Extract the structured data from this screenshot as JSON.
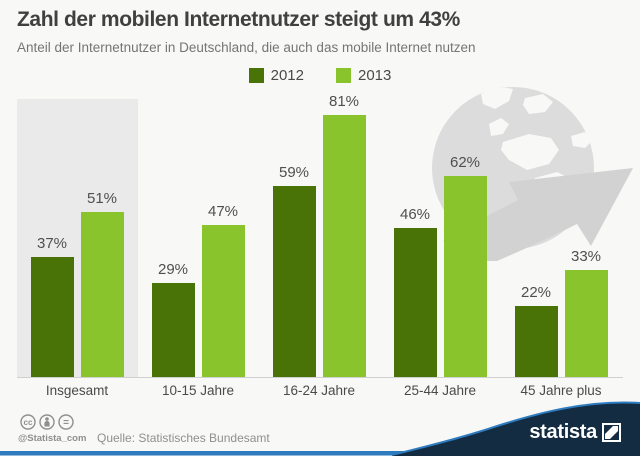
{
  "header": {
    "title": "Zahl der mobilen Internetnutzer steigt um 43%",
    "subtitle": "Anteil der Internetnutzer in Deutschland, die auch das mobile Internet nutzen"
  },
  "legend": {
    "items": [
      {
        "label": "2012",
        "color": "#497306"
      },
      {
        "label": "2013",
        "color": "#8ac42d"
      }
    ]
  },
  "chart_data": {
    "type": "bar",
    "categories": [
      "Insgesamt",
      "10-15 Jahre",
      "16-24 Jahre",
      "25-44 Jahre",
      "45 Jahre plus"
    ],
    "series": [
      {
        "name": "2012",
        "color": "#497306",
        "values": [
          37,
          29,
          59,
          46,
          22
        ]
      },
      {
        "name": "2013",
        "color": "#8ac42d",
        "values": [
          51,
          47,
          81,
          62,
          33
        ]
      }
    ],
    "unit": "%",
    "value_labels": true,
    "highlighted_category": "Insgesamt",
    "ylim": [
      0,
      90
    ],
    "grid": false,
    "legend_position": "top-center"
  },
  "footer": {
    "license_handle": "@Statista_com",
    "source": "Quelle: Statistisches Bundesamt",
    "brand": "statista",
    "cc_badges": [
      "cc",
      "by",
      "nd"
    ]
  },
  "colors": {
    "series_2012": "#497306",
    "series_2013": "#8ac42d",
    "accent_blue": "#2e7bc0",
    "footer_navy": "#142c42",
    "highlight_bg": "#eaeaea",
    "decoration_gray": "#dcdcdc"
  }
}
